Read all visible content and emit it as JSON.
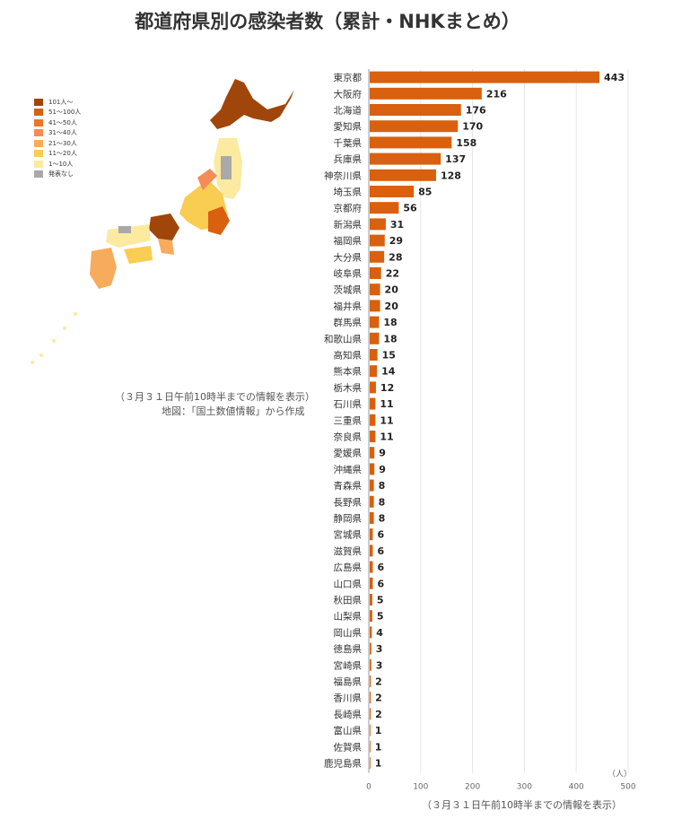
{
  "title": "都道府県別の感染者数（累計・NHKまとめ）",
  "map": {
    "legend": [
      {
        "label": "101人〜",
        "color": "#a0460a"
      },
      {
        "label": "51〜100人",
        "color": "#d8600e"
      },
      {
        "label": "41〜50人",
        "color": "#f07428"
      },
      {
        "label": "31〜40人",
        "color": "#f68b55"
      },
      {
        "label": "21〜30人",
        "color": "#f7ab5c"
      },
      {
        "label": "11〜20人",
        "color": "#f9cc52"
      },
      {
        "label": "1〜10人",
        "color": "#fbeaa0"
      },
      {
        "label": "発表なし",
        "color": "#a9a9a9"
      }
    ],
    "note_date": "（３月３１日午前10時半までの情報を表示）",
    "note_source": "地図：「国土数値情報」から作成"
  },
  "chart_note": "（３月３１日午前10時半までの情報を表示）",
  "chart_data": {
    "type": "bar",
    "orientation": "horizontal",
    "categories": [
      "東京都",
      "大阪府",
      "北海道",
      "愛知県",
      "千葉県",
      "兵庫県",
      "神奈川県",
      "埼玉県",
      "京都府",
      "新潟県",
      "福岡県",
      "大分県",
      "岐阜県",
      "茨城県",
      "福井県",
      "群馬県",
      "和歌山県",
      "高知県",
      "熊本県",
      "栃木県",
      "石川県",
      "三重県",
      "奈良県",
      "愛媛県",
      "沖縄県",
      "青森県",
      "長野県",
      "静岡県",
      "宮城県",
      "滋賀県",
      "広島県",
      "山口県",
      "秋田県",
      "山梨県",
      "岡山県",
      "徳島県",
      "宮崎県",
      "福島県",
      "香川県",
      "長崎県",
      "富山県",
      "佐賀県",
      "鹿児島県"
    ],
    "values": [
      443,
      216,
      176,
      170,
      158,
      137,
      128,
      85,
      56,
      31,
      29,
      28,
      22,
      20,
      20,
      18,
      18,
      15,
      14,
      12,
      11,
      11,
      11,
      9,
      9,
      8,
      8,
      8,
      6,
      6,
      6,
      6,
      5,
      5,
      4,
      3,
      3,
      2,
      2,
      2,
      1,
      1,
      1
    ],
    "xlim": [
      0,
      500
    ],
    "xticks": [
      0,
      100,
      200,
      300,
      400,
      500
    ],
    "xunit": "（人）",
    "bar_color": "#d8600e",
    "grid": true
  }
}
